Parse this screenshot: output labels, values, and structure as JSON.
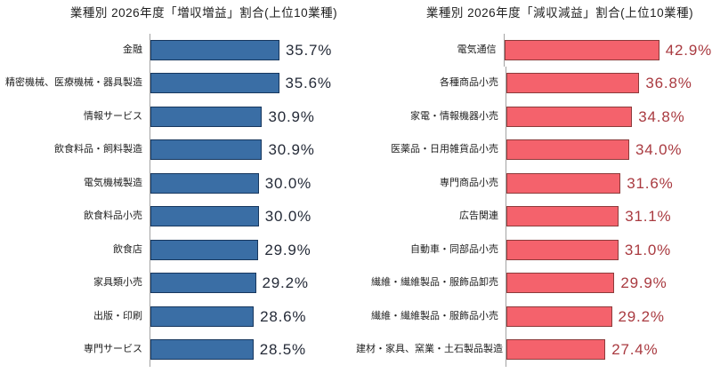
{
  "page": {
    "background": "#ffffff",
    "axis_line_color": "#a3a3a3"
  },
  "chart_data": [
    {
      "type": "bar",
      "orientation": "horizontal",
      "title": "業種別 2026年度「増収増益」割合(上位10業種)",
      "categories": [
        "金融",
        "精密機械、医療機械・器具製造",
        "情報サービス",
        "飲食料品・飼料製造",
        "電気機械製造",
        "飲食料品小売",
        "飲食店",
        "家具類小売",
        "出版・印刷",
        "専門サービス"
      ],
      "values": [
        35.7,
        35.6,
        30.9,
        30.9,
        30.0,
        30.0,
        29.9,
        29.2,
        28.6,
        28.5
      ],
      "value_labels": [
        "35.7%",
        "35.6%",
        "30.9%",
        "30.9%",
        "30.0%",
        "30.0%",
        "29.9%",
        "29.2%",
        "28.6%",
        "28.5%"
      ],
      "unit": "%",
      "xlim": [
        0,
        45
      ],
      "grid": false,
      "legend": false,
      "data_labels": true,
      "bar_fill": "#3a6ea5",
      "bar_border": "#17375e",
      "value_color": "#252b38"
    },
    {
      "type": "bar",
      "orientation": "horizontal",
      "title": "業種別 2026年度「減収減益」割合(上位10業種)",
      "categories": [
        "電気通信",
        "各種商品小売",
        "家電・情報機器小売",
        "医薬品・日用雑貨品小売",
        "専門商品小売",
        "広告関連",
        "自動車・同部品小売",
        "繊維・繊維製品・服飾品卸売",
        "繊維・繊維製品・服飾品小売",
        "建材・家具、窯業・土石製品製造"
      ],
      "values": [
        42.9,
        36.8,
        34.8,
        34.0,
        31.6,
        31.1,
        31.0,
        29.9,
        29.2,
        27.4
      ],
      "value_labels": [
        "42.9%",
        "36.8%",
        "34.8%",
        "34.0%",
        "31.6%",
        "31.1%",
        "31.0%",
        "29.9%",
        "29.2%",
        "27.4%"
      ],
      "unit": "%",
      "xlim": [
        0,
        45
      ],
      "grid": false,
      "legend": false,
      "data_labels": true,
      "bar_fill": "#f4626c",
      "bar_border": "#8c3b3b",
      "value_color": "#a93a40"
    }
  ]
}
